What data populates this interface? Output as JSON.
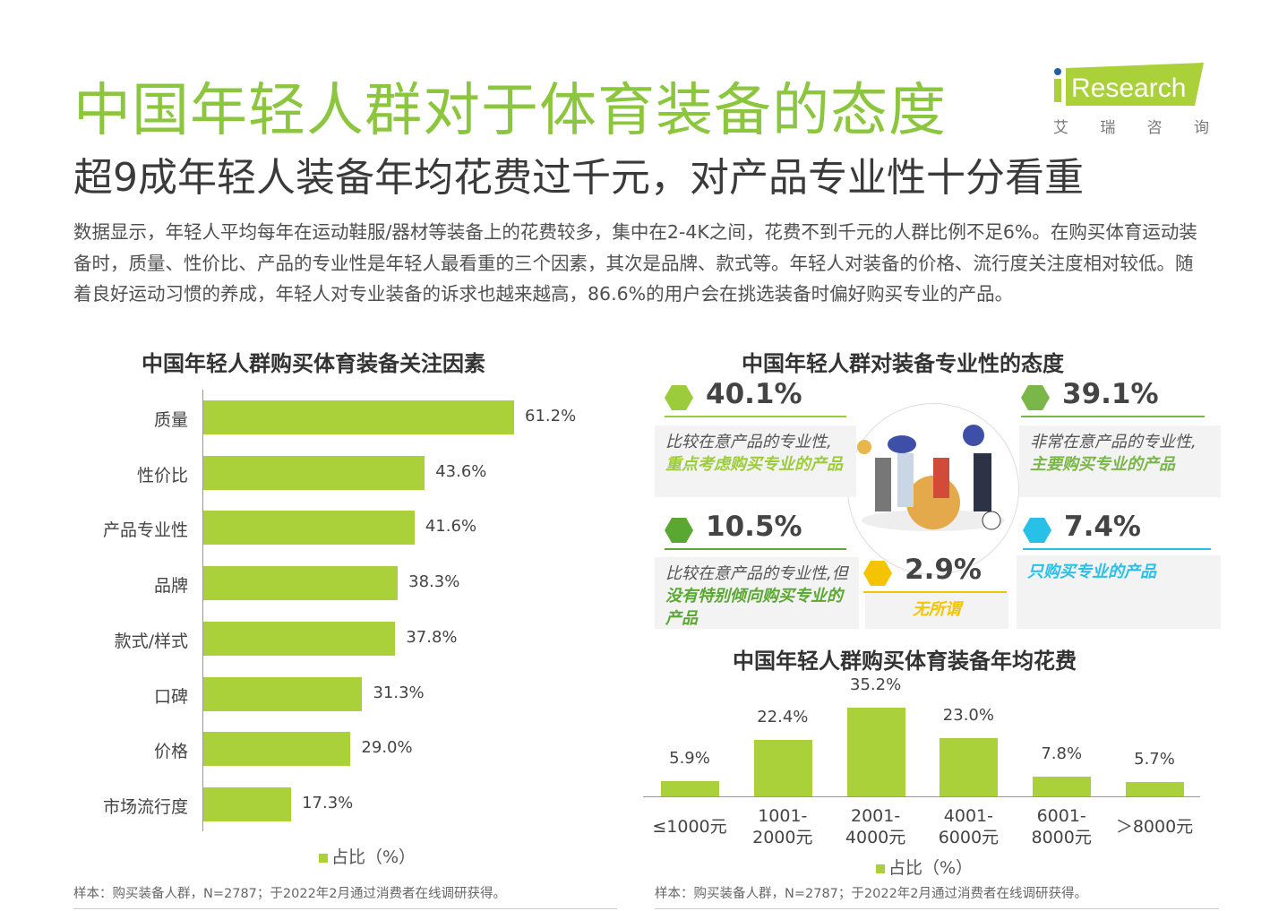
{
  "header": {
    "title": "中国年轻人群对于体育装备的态度",
    "subtitle": "超9成年轻人装备年均花费过千元，对产品专业性十分看重",
    "description": "数据显示，年轻人平均每年在运动鞋服/器材等装备上的花费较多，集中在2-4K之间，花费不到千元的人群比例不足6%。在购买体育运动装备时，质量、性价比、产品的专业性是年轻人最看重的三个因素，其次是品牌、款式等。年轻人对装备的价格、流行度关注度相对较低。随着良好运动习惯的养成，年轻人对专业装备的诉求也越来越高，86.6%的用户会在挑选装备时偏好购买专业的产品。"
  },
  "logo": {
    "text": "iResearch",
    "sub": [
      "艾",
      "瑞",
      "咨",
      "询"
    ]
  },
  "colors": {
    "bar": "#aad03a",
    "title": "#8cc63f",
    "lightgreen": "#9ccc3c",
    "green": "#7ab648",
    "darkgreen": "#5aa832",
    "cyan": "#29c0e8",
    "yellow": "#f5c400"
  },
  "chart_data": [
    {
      "type": "bar",
      "orientation": "horizontal",
      "title": "中国年轻人群购买体育装备关注因素",
      "categories": [
        "质量",
        "性价比",
        "产品专业性",
        "品牌",
        "款式/样式",
        "口碑",
        "价格",
        "市场流行度"
      ],
      "values": [
        61.2,
        43.6,
        41.6,
        38.3,
        37.8,
        31.3,
        29.0,
        17.3
      ],
      "value_labels": [
        "61.2%",
        "43.6%",
        "41.6%",
        "38.3%",
        "37.8%",
        "31.3%",
        "29.0%",
        "17.3%"
      ],
      "legend": "占比（%）",
      "xlim": [
        0,
        70
      ]
    },
    {
      "type": "bar",
      "title": "中国年轻人群购买体育装备年均花费",
      "categories": [
        [
          "≤1000元"
        ],
        [
          "1001-",
          "2000元"
        ],
        [
          "2001-",
          "4000元"
        ],
        [
          "4001-",
          "6000元"
        ],
        [
          "6001-",
          "8000元"
        ],
        [
          "＞8000元"
        ]
      ],
      "values": [
        5.9,
        22.4,
        35.2,
        23.0,
        7.8,
        5.7
      ],
      "value_labels": [
        "5.9%",
        "22.4%",
        "35.2%",
        "23.0%",
        "7.8%",
        "5.7%"
      ],
      "legend": "占比（%）",
      "ylim": [
        0,
        40
      ]
    }
  ],
  "attitude": {
    "title": "中国年轻人群对装备专业性的态度",
    "items": [
      {
        "pct": "40.1%",
        "plain": "比较在意产品的专业性,",
        "bold": "重点考虑购买专业的产品"
      },
      {
        "pct": "39.1%",
        "plain": "非常在意产品的专业性,",
        "bold": "主要购买专业的产品"
      },
      {
        "pct": "10.5%",
        "plain": "比较在意产品的专业性,但",
        "bold": "没有特别倾向购买专业的产品"
      },
      {
        "pct": "7.4%",
        "plain": "",
        "bold": "只购买专业的产品"
      },
      {
        "pct": "2.9%",
        "plain": "",
        "bold": "无所谓"
      }
    ]
  },
  "notes": {
    "left": "样本：购买装备人群，N=2787；于2022年2月通过消费者在线调研获得。",
    "right": "样本：购买装备人群，N=2787；于2022年2月通过消费者在线调研获得。"
  }
}
